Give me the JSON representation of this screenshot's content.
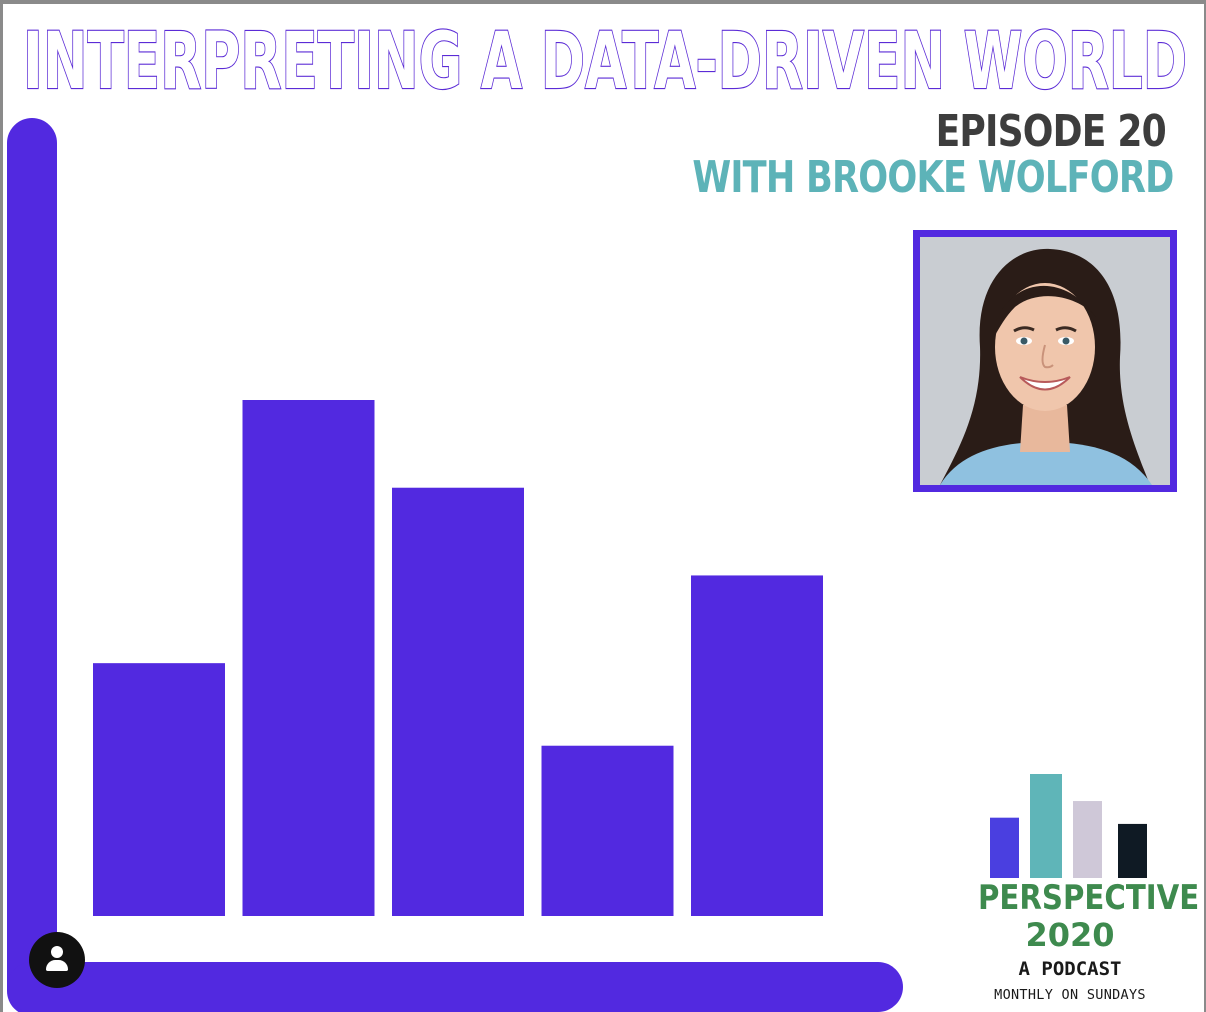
{
  "header": {
    "title": "INTERPRETING A DATA-DRIVEN WORLD",
    "episode": "EPISODE 20",
    "guest": "WITH BROOKE WOLFORD"
  },
  "portrait": {
    "description_icon": "guest-portrait-photo"
  },
  "chart_data": {
    "type": "bar",
    "categories": [
      "",
      "",
      "",
      "",
      ""
    ],
    "values": [
      49,
      100,
      83,
      33,
      66
    ],
    "xlabel": "",
    "ylabel": "",
    "ylim": [
      0,
      100
    ],
    "grid": false,
    "bar_color": "#5229e0",
    "axis_color": "#5229e0"
  },
  "logo": {
    "name": "PERSPECTIVE",
    "year": "2020",
    "subtitle": "A PODCAST",
    "schedule": "MONTHLY ON SUNDAYS",
    "bars": [
      {
        "value": 0.58,
        "color": "#4a3fe0"
      },
      {
        "value": 1.0,
        "color": "#5fb5b8"
      },
      {
        "value": 0.74,
        "color": "#cfc8d8"
      },
      {
        "value": 0.52,
        "color": "#0f1a24"
      }
    ]
  },
  "colors": {
    "accent": "#5229e0",
    "title_outline": "#5b2bd6",
    "episode_text": "#3d3d3d",
    "guest_text": "#5db3b8",
    "logo_green": "#3e8a4e"
  },
  "profile_icon": "user-profile-icon"
}
